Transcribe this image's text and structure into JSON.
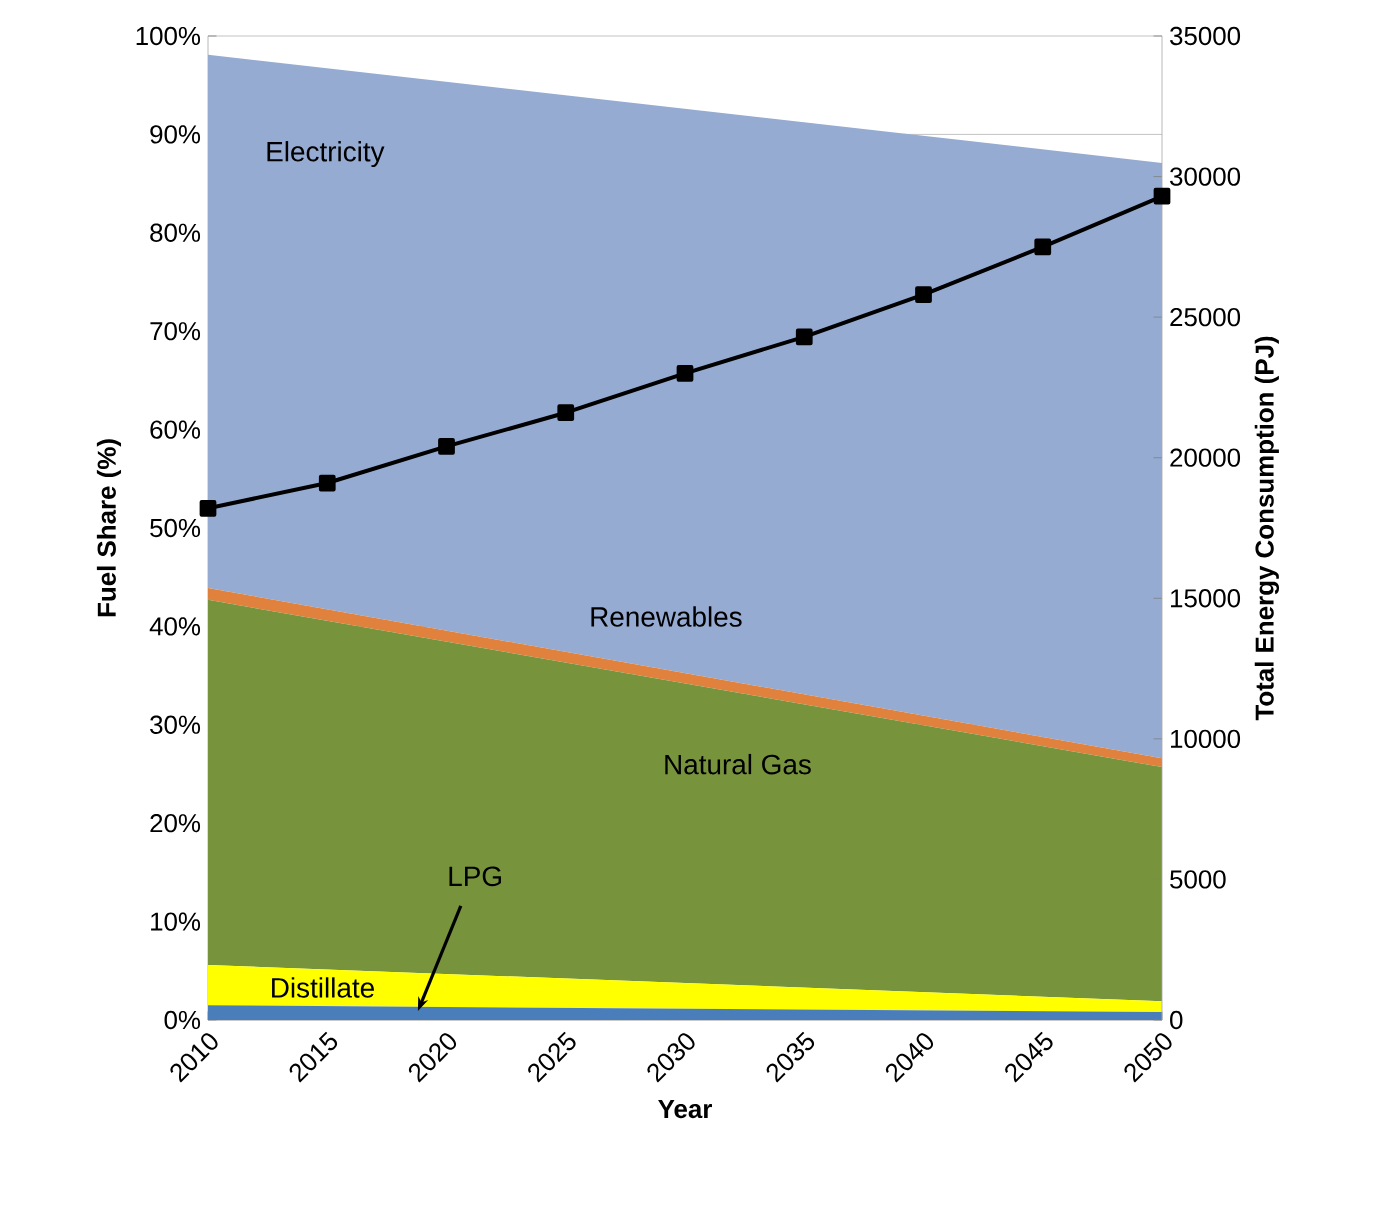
{
  "chart_data": {
    "type": "area",
    "stacked": true,
    "xlabel": "Year",
    "ylabel": "Fuel Share (%)",
    "y2label": "Total Energy Consumption  (PJ)",
    "xlim": [
      2010,
      2050
    ],
    "xticks": [
      2010,
      2015,
      2020,
      2025,
      2030,
      2035,
      2040,
      2045,
      2050
    ],
    "ylim": [
      0,
      100
    ],
    "yticks": [
      {
        "value": 0,
        "label": "0%"
      },
      {
        "value": 10,
        "label": "10%"
      },
      {
        "value": 20,
        "label": "20%"
      },
      {
        "value": 30,
        "label": "30%"
      },
      {
        "value": 40,
        "label": "40%"
      },
      {
        "value": 50,
        "label": "50%"
      },
      {
        "value": 60,
        "label": "60%"
      },
      {
        "value": 70,
        "label": "70%"
      },
      {
        "value": 80,
        "label": "80%"
      },
      {
        "value": 90,
        "label": "90%"
      },
      {
        "value": 100,
        "label": "100%"
      }
    ],
    "y2lim": [
      0,
      35000
    ],
    "y2ticks": [
      0,
      5000,
      10000,
      15000,
      20000,
      25000,
      30000,
      35000
    ],
    "grid": "y",
    "legend": false,
    "series": [
      {
        "name": "LPG",
        "color": "#4a7ebb",
        "x": [
          2010,
          2050
        ],
        "values": [
          1.5,
          0.8
        ]
      },
      {
        "name": "Distillate",
        "color": "#ffff00",
        "x": [
          2010,
          2050
        ],
        "values": [
          4.1,
          1.1
        ]
      },
      {
        "name": "Natural Gas",
        "color": "#77933c",
        "x": [
          2010,
          2050
        ],
        "values": [
          37.1,
          23.8
        ]
      },
      {
        "name": "Renewables",
        "color": "#e0823e",
        "x": [
          2010,
          2050
        ],
        "values": [
          1.2,
          0.9
        ]
      },
      {
        "name": "Electricity",
        "color": "#95abd1",
        "x": [
          2010,
          2050
        ],
        "values": [
          54.2,
          60.5
        ]
      },
      {
        "type": "line",
        "axis": "y2",
        "marker": "square",
        "color": "#000000",
        "x": [
          2010,
          2015,
          2020,
          2025,
          2030,
          2035,
          2040,
          2045,
          2050
        ],
        "values": [
          18200,
          19100,
          20400,
          21600,
          23000,
          24300,
          25800,
          27500,
          29300
        ]
      }
    ]
  }
}
